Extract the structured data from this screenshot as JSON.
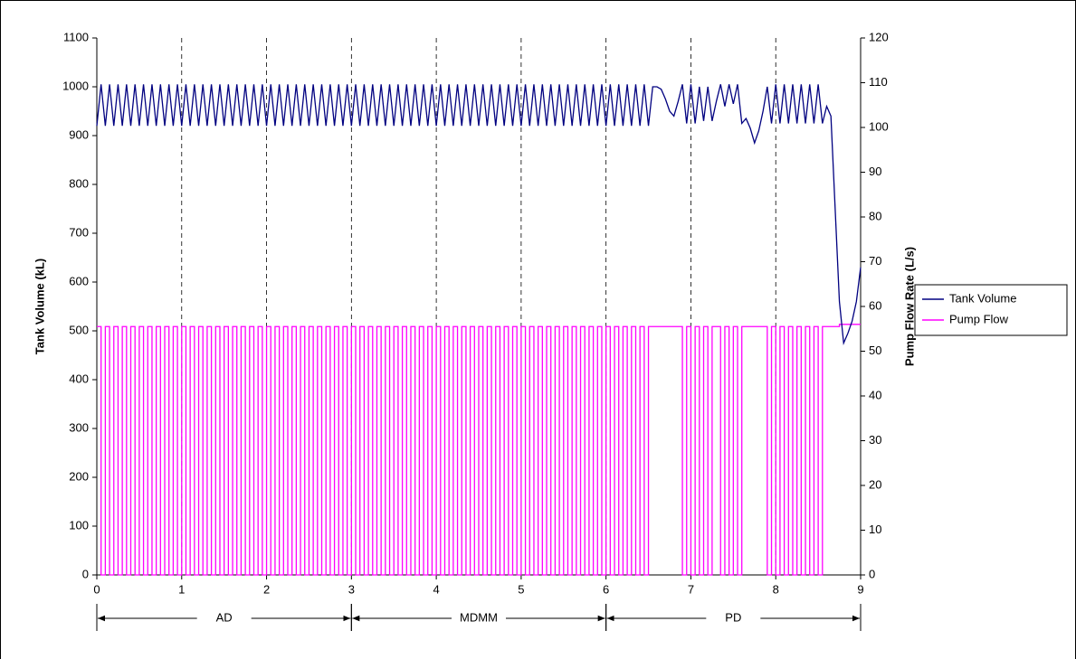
{
  "chart_data": {
    "type": "line",
    "y_label": "Tank Volume (kL)",
    "y2_label": "Pump Flow Rate (L/s)",
    "xlim": [
      0,
      9
    ],
    "xticks": [
      0,
      1,
      2,
      3,
      4,
      5,
      6,
      7,
      8,
      9
    ],
    "ylim": [
      0,
      1100
    ],
    "yticks": [
      0,
      100,
      200,
      300,
      400,
      500,
      600,
      700,
      800,
      900,
      1000,
      1100
    ],
    "y2lim": [
      0,
      120
    ],
    "y2ticks": [
      0,
      10,
      20,
      30,
      40,
      50,
      60,
      70,
      80,
      90,
      100,
      110,
      120
    ],
    "xgrid": true,
    "legend": "right",
    "phases": [
      {
        "label": "AD",
        "start": 0,
        "end": 3
      },
      {
        "label": "MDMM",
        "start": 3,
        "end": 6
      },
      {
        "label": "PD",
        "start": 6,
        "end": 9
      }
    ],
    "x": [
      0,
      0.05,
      0.1,
      0.15,
      0.2,
      0.25,
      0.3,
      0.35,
      0.4,
      0.45,
      0.5,
      0.55,
      0.6,
      0.65,
      0.7,
      0.75,
      0.8,
      0.85,
      0.9,
      0.95,
      1,
      1.05,
      1.1,
      1.15,
      1.2,
      1.25,
      1.3,
      1.35,
      1.4,
      1.45,
      1.5,
      1.55,
      1.6,
      1.65,
      1.7,
      1.75,
      1.8,
      1.85,
      1.9,
      1.95,
      2,
      2.05,
      2.1,
      2.15,
      2.2,
      2.25,
      2.3,
      2.35,
      2.4,
      2.45,
      2.5,
      2.55,
      2.6,
      2.65,
      2.7,
      2.75,
      2.8,
      2.85,
      2.9,
      2.95,
      3,
      3.05,
      3.1,
      3.15,
      3.2,
      3.25,
      3.3,
      3.35,
      3.4,
      3.45,
      3.5,
      3.55,
      3.6,
      3.65,
      3.7,
      3.75,
      3.8,
      3.85,
      3.9,
      3.95,
      4,
      4.05,
      4.1,
      4.15,
      4.2,
      4.25,
      4.3,
      4.35,
      4.4,
      4.45,
      4.5,
      4.55,
      4.6,
      4.65,
      4.7,
      4.75,
      4.8,
      4.85,
      4.9,
      4.95,
      5,
      5.05,
      5.1,
      5.15,
      5.2,
      5.25,
      5.3,
      5.35,
      5.4,
      5.45,
      5.5,
      5.55,
      5.6,
      5.65,
      5.7,
      5.75,
      5.8,
      5.85,
      5.9,
      5.95,
      6,
      6.05,
      6.1,
      6.15,
      6.2,
      6.25,
      6.3,
      6.35,
      6.4,
      6.45,
      6.5,
      6.55,
      6.6,
      6.65,
      6.7,
      6.75,
      6.8,
      6.85,
      6.9,
      6.95,
      7,
      7.05,
      7.1,
      7.15,
      7.2,
      7.25,
      7.3,
      7.35,
      7.4,
      7.45,
      7.5,
      7.55,
      7.6,
      7.65,
      7.7,
      7.75,
      7.8,
      7.85,
      7.9,
      7.95,
      8,
      8.05,
      8.1,
      8.15,
      8.2,
      8.25,
      8.3,
      8.35,
      8.4,
      8.45,
      8.5,
      8.55,
      8.6,
      8.65,
      8.7,
      8.75,
      8.8,
      8.85,
      8.9,
      8.95,
      9
    ],
    "series": [
      {
        "name": "Tank Volume",
        "color": "#000080",
        "values": [
          920,
          1005,
          920,
          1005,
          920,
          1005,
          920,
          1005,
          920,
          1005,
          920,
          1005,
          920,
          1005,
          920,
          1005,
          920,
          1005,
          920,
          1005,
          920,
          1005,
          920,
          1005,
          920,
          1005,
          920,
          1005,
          920,
          1005,
          920,
          1005,
          920,
          1005,
          920,
          1005,
          920,
          1005,
          920,
          1005,
          920,
          1005,
          920,
          1005,
          920,
          1005,
          920,
          1005,
          920,
          1005,
          920,
          1005,
          920,
          1005,
          920,
          1005,
          920,
          1005,
          920,
          1005,
          920,
          1005,
          920,
          1005,
          920,
          1005,
          920,
          1005,
          920,
          1005,
          920,
          1005,
          920,
          1005,
          920,
          1005,
          920,
          1005,
          920,
          1005,
          920,
          1005,
          920,
          1005,
          920,
          1005,
          920,
          1005,
          920,
          1005,
          920,
          1005,
          920,
          1005,
          920,
          1005,
          920,
          1005,
          920,
          1005,
          920,
          1005,
          920,
          1005,
          920,
          1005,
          920,
          1005,
          920,
          1005,
          920,
          1005,
          920,
          1005,
          920,
          1005,
          920,
          1005,
          920,
          1005,
          920,
          1005,
          920,
          1005,
          920,
          1005,
          920,
          1005,
          920,
          1005,
          920,
          1000,
          1000,
          995,
          975,
          950,
          940,
          970,
          1005,
          925,
          1005,
          925,
          1000,
          930,
          1000,
          930,
          970,
          1005,
          960,
          1005,
          965,
          1005,
          925,
          935,
          915,
          885,
          910,
          950,
          1000,
          925,
          1005,
          925,
          1005,
          925,
          1005,
          925,
          1005,
          925,
          1005,
          925,
          1005,
          925,
          960,
          940,
          750,
          560,
          475,
          495,
          520,
          560,
          630
        ]
      },
      {
        "name": "Pump Flow",
        "color": "#ff00ff",
        "axis": "y2",
        "step": true,
        "values": [
          55.5,
          0,
          55.5,
          0,
          55.5,
          0,
          55.5,
          0,
          55.5,
          0,
          55.5,
          0,
          55.5,
          0,
          55.5,
          0,
          55.5,
          0,
          55.5,
          0,
          55.5,
          0,
          55.5,
          0,
          55.5,
          0,
          55.5,
          0,
          55.5,
          0,
          55.5,
          0,
          55.5,
          0,
          55.5,
          0,
          55.5,
          0,
          55.5,
          0,
          55.5,
          0,
          55.5,
          0,
          55.5,
          0,
          55.5,
          0,
          55.5,
          0,
          55.5,
          0,
          55.5,
          0,
          55.5,
          0,
          55.5,
          0,
          55.5,
          0,
          55.5,
          0,
          55.5,
          0,
          55.5,
          0,
          55.5,
          0,
          55.5,
          0,
          55.5,
          0,
          55.5,
          0,
          55.5,
          0,
          55.5,
          0,
          55.5,
          0,
          55.5,
          0,
          55.5,
          0,
          55.5,
          0,
          55.5,
          0,
          55.5,
          0,
          55.5,
          0,
          55.5,
          0,
          55.5,
          0,
          55.5,
          0,
          55.5,
          0,
          55.5,
          0,
          55.5,
          0,
          55.5,
          0,
          55.5,
          0,
          55.5,
          0,
          55.5,
          0,
          55.5,
          0,
          55.5,
          0,
          55.5,
          0,
          55.5,
          0,
          55.5,
          0,
          55.5,
          0,
          55.5,
          0,
          55.5,
          0,
          55.5,
          0,
          55.5,
          55.5,
          55.5,
          55.5,
          55.5,
          55.5,
          55.5,
          55.5,
          0,
          55.5,
          0,
          55.5,
          0,
          55.5,
          0,
          55.5,
          55.5,
          0,
          55.5,
          0,
          55.5,
          0,
          55.5,
          55.5,
          55.5,
          55.5,
          55.5,
          55.5,
          0,
          55.5,
          0,
          55.5,
          0,
          55.5,
          0,
          55.5,
          0,
          55.5,
          0,
          55.5,
          0,
          55.5,
          55.5,
          55.5,
          55.5,
          56,
          56,
          56,
          56,
          56,
          56
        ]
      }
    ]
  }
}
